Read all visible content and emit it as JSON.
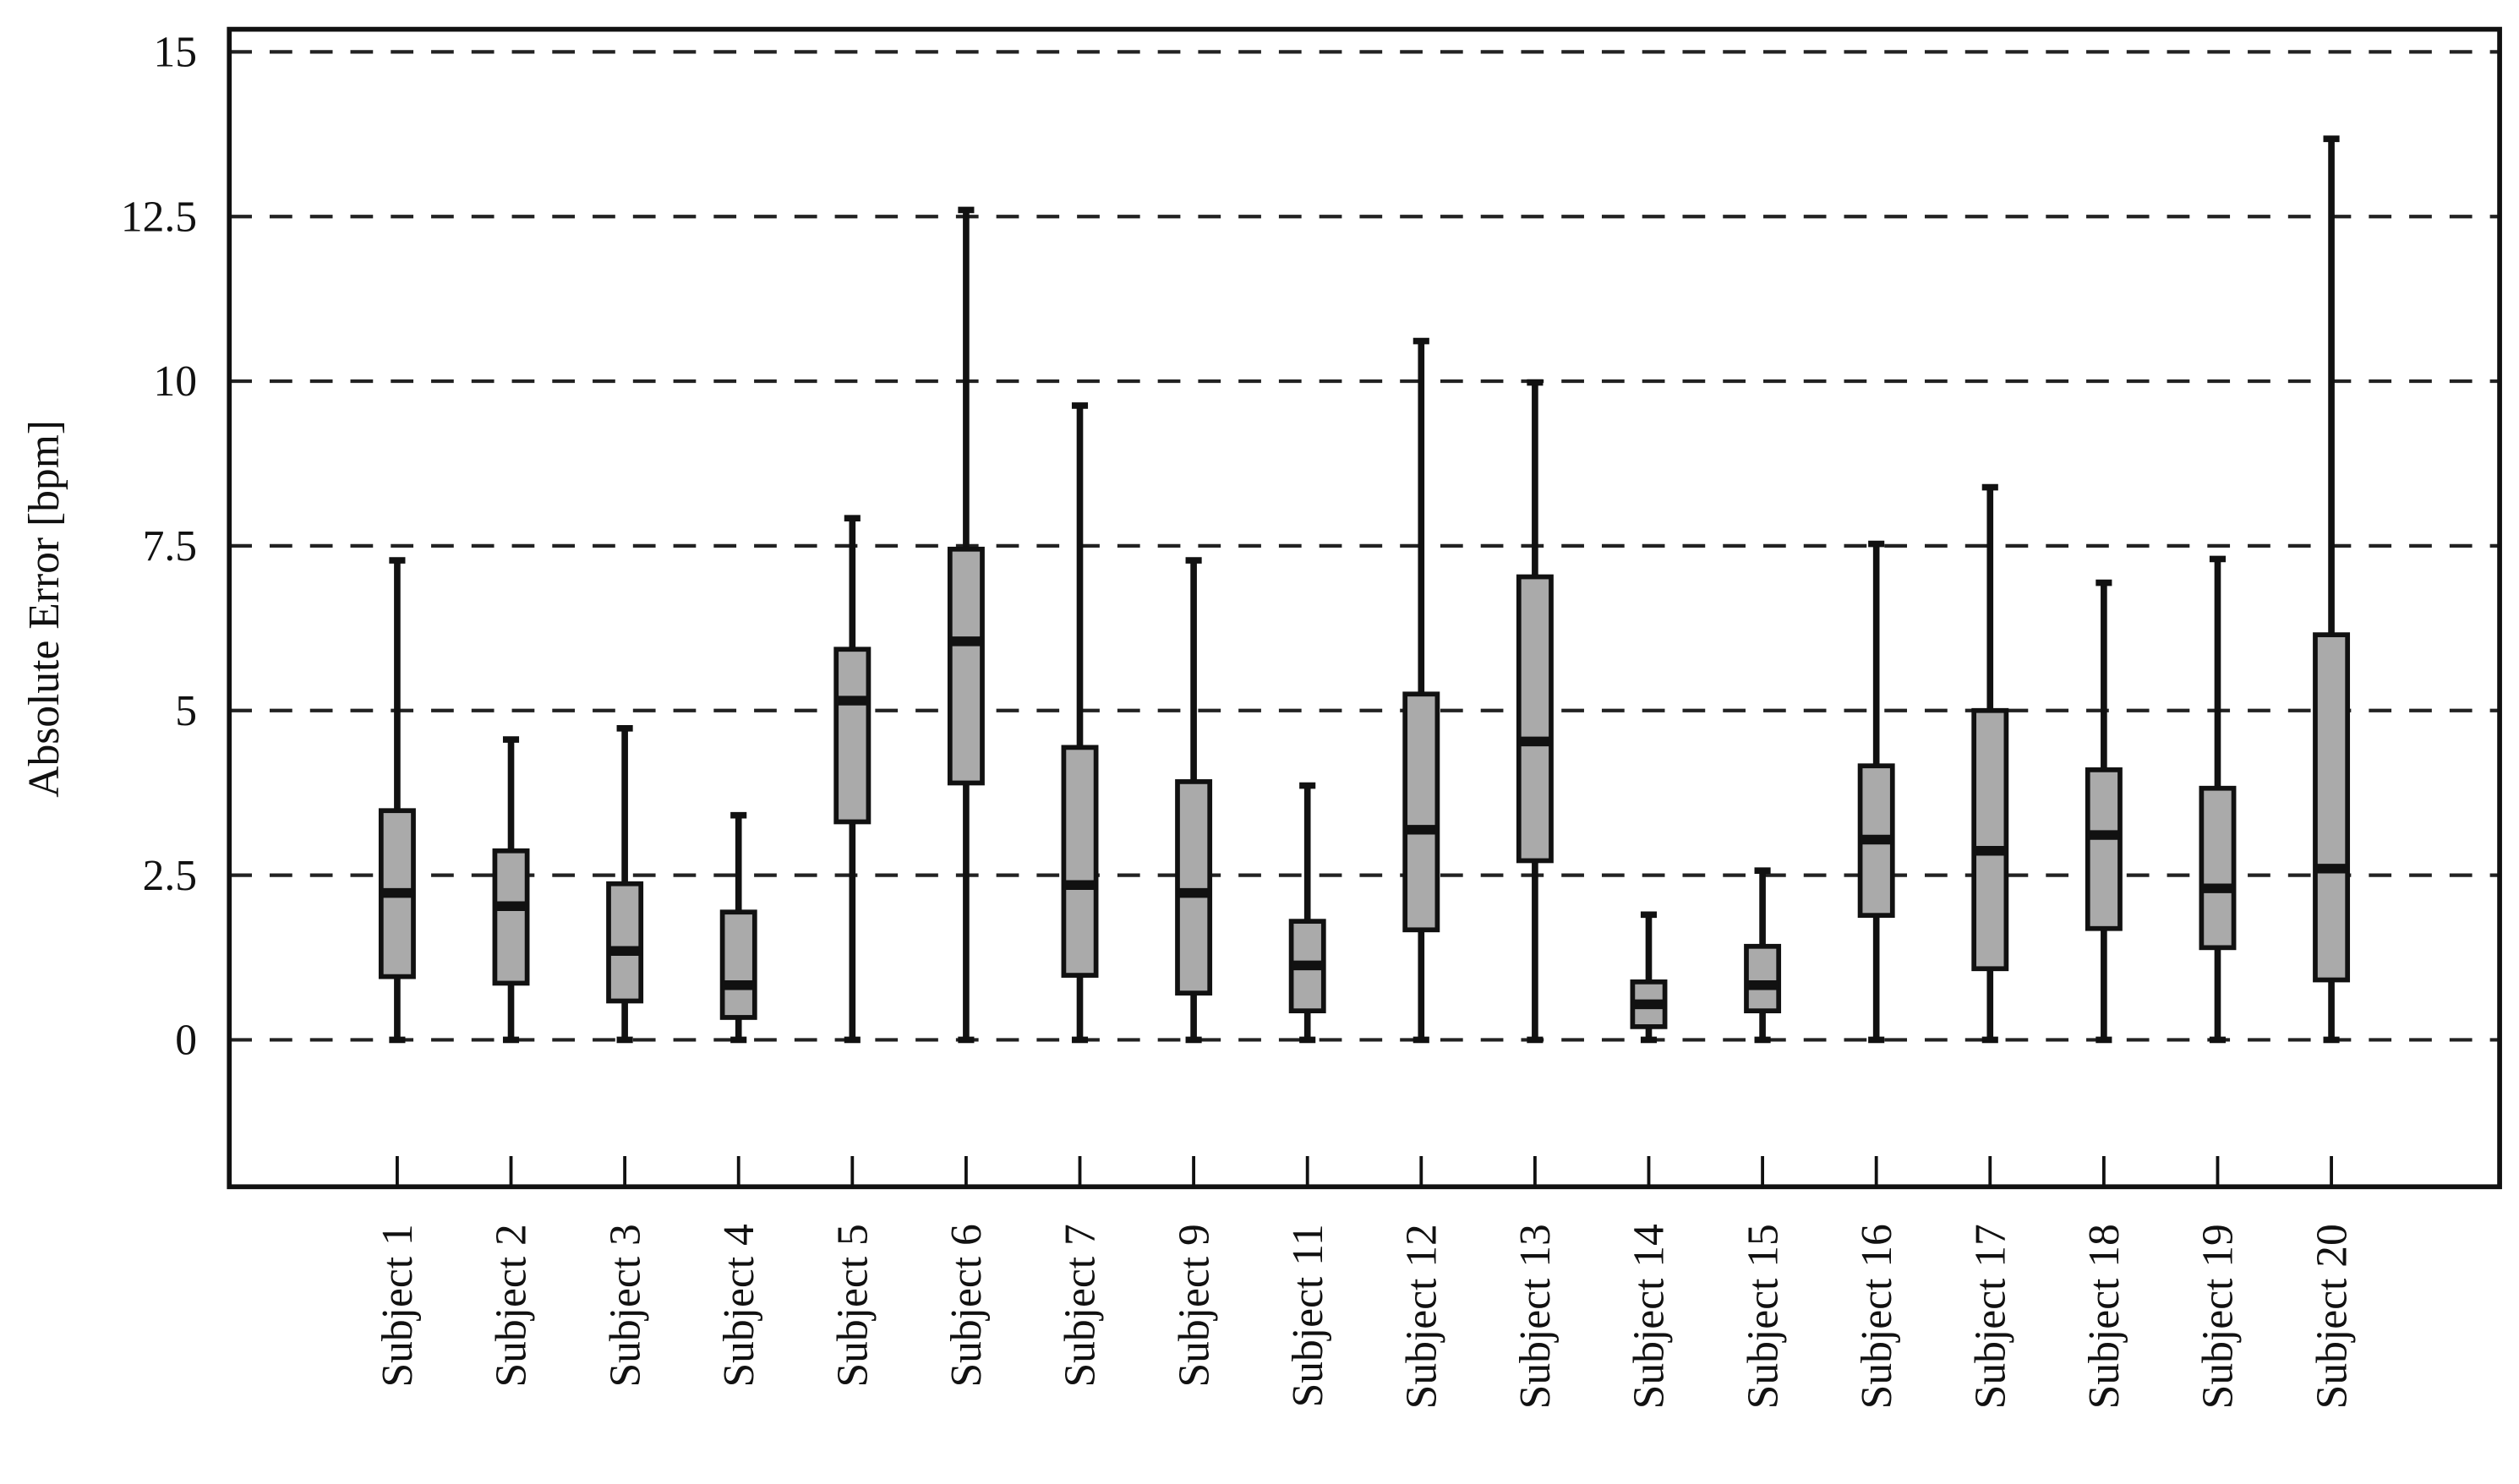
{
  "chart_data": {
    "type": "box",
    "title": "",
    "xlabel": "",
    "ylabel": "Absolute Error [bpm]",
    "ylim": [
      -2.2,
      15.3
    ],
    "yticks": [
      0,
      2.5,
      5,
      7.5,
      10,
      12.5,
      15
    ],
    "ytick_labels": [
      "0",
      "2.5",
      "5",
      "7.5",
      "10",
      "12.5",
      "15"
    ],
    "grid": "horizontal dashed",
    "box_fill": "#aaaaaa",
    "line_color": "#111111",
    "categories": [
      "Subject 1",
      "Subject 2",
      "Subject 3",
      "Subject 4",
      "Subject 5",
      "Subject 6",
      "Subject 7",
      "Subject 9",
      "Subject 11",
      "Subject 12",
      "Subject 13",
      "Subject 14",
      "Subject 15",
      "Subject 16",
      "Subject 17",
      "Subject 18",
      "Subject 19",
      "Subject 20"
    ],
    "boxes": [
      {
        "min": 0,
        "q1": 0.96,
        "median": 2.23,
        "q3": 3.48,
        "max": 7.28
      },
      {
        "min": 0,
        "q1": 0.86,
        "median": 2.03,
        "q3": 2.87,
        "max": 4.56
      },
      {
        "min": 0,
        "q1": 0.59,
        "median": 1.35,
        "q3": 2.37,
        "max": 4.73
      },
      {
        "min": 0,
        "q1": 0.34,
        "median": 0.83,
        "q3": 1.94,
        "max": 3.41
      },
      {
        "min": 0,
        "q1": 3.31,
        "median": 5.15,
        "q3": 5.93,
        "max": 7.92
      },
      {
        "min": 0,
        "q1": 3.9,
        "median": 6.05,
        "q3": 7.45,
        "max": 12.6
      },
      {
        "min": 0,
        "q1": 0.98,
        "median": 2.35,
        "q3": 4.44,
        "max": 9.63
      },
      {
        "min": 0,
        "q1": 0.71,
        "median": 2.23,
        "q3": 3.92,
        "max": 7.28
      },
      {
        "min": 0,
        "q1": 0.44,
        "median": 1.13,
        "q3": 1.8,
        "max": 3.86
      },
      {
        "min": 0,
        "q1": 1.67,
        "median": 3.19,
        "q3": 5.25,
        "max": 10.61
      },
      {
        "min": 0,
        "q1": 2.72,
        "median": 4.53,
        "q3": 7.03,
        "max": 9.98
      },
      {
        "min": 0,
        "q1": 0.2,
        "median": 0.54,
        "q3": 0.88,
        "max": 1.9
      },
      {
        "min": 0,
        "q1": 0.44,
        "median": 0.83,
        "q3": 1.42,
        "max": 2.57
      },
      {
        "min": 0,
        "q1": 1.89,
        "median": 3.04,
        "q3": 4.16,
        "max": 7.53
      },
      {
        "min": 0,
        "q1": 1.08,
        "median": 2.87,
        "q3": 5.0,
        "max": 8.39
      },
      {
        "min": 0,
        "q1": 1.69,
        "median": 3.11,
        "q3": 4.1,
        "max": 6.94
      },
      {
        "min": 0,
        "q1": 1.4,
        "median": 2.3,
        "q3": 3.82,
        "max": 7.3
      },
      {
        "min": 0,
        "q1": 0.91,
        "median": 2.6,
        "q3": 6.15,
        "max": 13.68
      }
    ]
  }
}
